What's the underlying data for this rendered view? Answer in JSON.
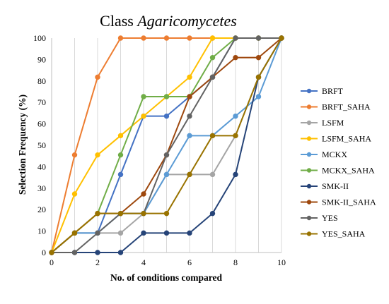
{
  "chart_data": {
    "type": "line",
    "title": "Class ",
    "title_italic": "Agaricomycetes",
    "xlabel": "No. of conditions compared",
    "ylabel": "Selection Frequency (%)",
    "xlim": [
      0,
      10
    ],
    "ylim": [
      0,
      100
    ],
    "xticks": [
      0,
      2,
      4,
      6,
      8,
      10
    ],
    "yticks": [
      0,
      10,
      20,
      30,
      40,
      50,
      60,
      70,
      80,
      90,
      100
    ],
    "grid": {
      "vertical": true,
      "horizontal": false
    },
    "legend_position": "right",
    "x": [
      0,
      1,
      2,
      3,
      4,
      5,
      6,
      7,
      8,
      9,
      10
    ],
    "series": [
      {
        "name": "BRFT",
        "color": "#4472C4",
        "values": [
          0,
          9.1,
          9.1,
          36.4,
          63.6,
          63.6,
          72.7,
          81.8,
          100,
          100,
          100
        ]
      },
      {
        "name": "BRFT_SAHA",
        "color": "#ED7D31",
        "values": [
          0,
          45.5,
          81.8,
          100,
          100,
          100,
          100,
          100,
          100,
          100,
          100
        ]
      },
      {
        "name": "LSFM",
        "color": "#A5A5A5",
        "values": [
          0,
          9.1,
          9.1,
          9.1,
          18.2,
          36.4,
          36.4,
          36.4,
          54.5,
          81.8,
          100
        ]
      },
      {
        "name": "LSFM_SAHA",
        "color": "#FFC000",
        "values": [
          0,
          27.3,
          45.5,
          54.5,
          63.6,
          72.7,
          81.8,
          100,
          100,
          100,
          100
        ]
      },
      {
        "name": "MCKX",
        "color": "#5B9BD5",
        "values": [
          0,
          9.1,
          9.1,
          18.2,
          18.2,
          36.4,
          54.5,
          54.5,
          63.6,
          72.7,
          100
        ]
      },
      {
        "name": "MCKX_SAHA",
        "color": "#70AD47",
        "values": [
          0,
          9.1,
          18.2,
          45.5,
          72.7,
          72.7,
          72.7,
          90.9,
          100,
          100,
          100
        ]
      },
      {
        "name": "SMK-II",
        "color": "#264478",
        "values": [
          0,
          0,
          0,
          0,
          9.1,
          9.1,
          9.1,
          18.2,
          36.4,
          81.8,
          100
        ]
      },
      {
        "name": "SMK-II_SAHA",
        "color": "#9E480E",
        "values": [
          0,
          9.1,
          18.2,
          18.2,
          27.3,
          45.5,
          72.7,
          81.8,
          90.9,
          90.9,
          100
        ]
      },
      {
        "name": "YES",
        "color": "#636363",
        "values": [
          0,
          0,
          9.1,
          18.2,
          18.2,
          45.5,
          63.6,
          81.8,
          100,
          100,
          100
        ]
      },
      {
        "name": "YES_SAHA",
        "color": "#997300",
        "values": [
          0,
          9.1,
          18.2,
          18.2,
          18.2,
          18.2,
          36.4,
          54.5,
          54.5,
          81.8,
          100
        ]
      }
    ]
  }
}
